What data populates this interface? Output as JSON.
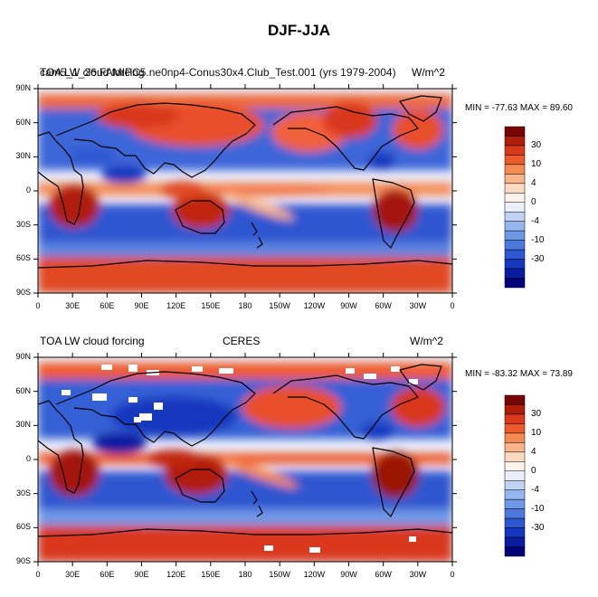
{
  "title": "DJF-JJA",
  "lon_ticks": [
    "0",
    "30E",
    "60E",
    "90E",
    "120E",
    "150E",
    "180",
    "150W",
    "120W",
    "90W",
    "60W",
    "30W",
    "0"
  ],
  "lat_ticks": [
    "90N",
    "60N",
    "30N",
    "0",
    "30S",
    "60S",
    "90S"
  ],
  "colorbar_labels": [
    "30",
    "10",
    "4",
    "0",
    "-4",
    "-10",
    "-30"
  ],
  "colorbar_colors": [
    "#7a0403",
    "#b01c0a",
    "#d9381a",
    "#ef5a2c",
    "#f58a52",
    "#f8b488",
    "#fbd8bf",
    "#fdf3ea",
    "#e9f0fb",
    "#c1d3f5",
    "#94b5ee",
    "#6e97e6",
    "#4d78dd",
    "#2e58d3",
    "#1437bf",
    "#0a1da0",
    "#00007a"
  ],
  "panels": [
    {
      "left_title": "TOA LW cloud forcing",
      "overlap_title": "cam5_1_26.FAMIPC5.ne0np4-Conus30x4.Club_Test.001 (yrs 1979-2004)",
      "units": "W/m^2",
      "min_max": "MIN = -77.63 MAX =  89.60"
    },
    {
      "left_title": "TOA LW cloud forcing",
      "center_title": "CERES",
      "units": "W/m^2",
      "min_max": "MIN = -83.32 MAX =  73.89"
    }
  ]
}
